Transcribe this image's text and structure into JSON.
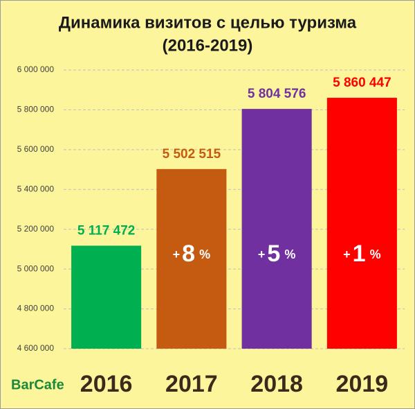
{
  "chart_data": {
    "type": "bar",
    "title": "Динамика визитов с целью туризма",
    "subtitle": "(2016-2019)",
    "categories": [
      "2016",
      "2017",
      "2018",
      "2019"
    ],
    "series": [
      {
        "name": "Визиты с целью туризма",
        "colors": [
          "#00b050",
          "#c55a11",
          "#7030a0",
          "#ff0000"
        ],
        "values": [
          5117472,
          5502515,
          5804576,
          5860447
        ],
        "value_labels": [
          "5 117 472",
          "5 502 515",
          "5 804 576",
          "5 860 447"
        ]
      }
    ],
    "growth": [
      null,
      {
        "sign": "+",
        "number": 8,
        "unit": "%"
      },
      {
        "sign": "+",
        "number": 5,
        "unit": "%"
      },
      {
        "sign": "+",
        "number": 1,
        "unit": "%"
      }
    ],
    "ylim": [
      4600000,
      6000000
    ],
    "yticks": [
      {
        "value": 4600000,
        "label": "4 600 000"
      },
      {
        "value": 4800000,
        "label": "4 800 000"
      },
      {
        "value": 5000000,
        "label": "5 000 000"
      },
      {
        "value": 5200000,
        "label": "5 200 000"
      },
      {
        "value": 5400000,
        "label": "5 400 000"
      },
      {
        "value": 5600000,
        "label": "5 600 000"
      },
      {
        "value": 5800000,
        "label": "5 800 000"
      },
      {
        "value": 6000000,
        "label": "6 000 000"
      }
    ],
    "grid": true,
    "logo": "BarCafe"
  }
}
